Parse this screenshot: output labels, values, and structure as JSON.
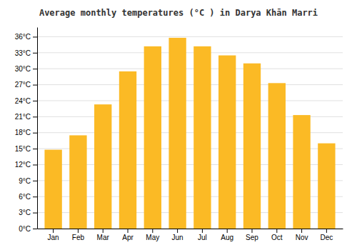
{
  "chart_data": {
    "type": "bar",
    "title": "Average monthly temperatures (°C ) in Darya Khān Marri",
    "categories": [
      "Jan",
      "Feb",
      "Mar",
      "Apr",
      "May",
      "Jun",
      "Jul",
      "Aug",
      "Sep",
      "Oct",
      "Nov",
      "Dec"
    ],
    "values": [
      14.8,
      17.5,
      23.3,
      29.5,
      34.2,
      35.8,
      34.2,
      32.5,
      31.0,
      27.3,
      21.3,
      16.0
    ],
    "color": "#FBBA25",
    "ylim": [
      0,
      37.8
    ],
    "yticks": [
      {
        "value": 0,
        "label": "0°C"
      },
      {
        "value": 3,
        "label": "3°C"
      },
      {
        "value": 6,
        "label": "6°C"
      },
      {
        "value": 9,
        "label": "9°C"
      },
      {
        "value": 12,
        "label": "12°C"
      },
      {
        "value": 15,
        "label": "15°C"
      },
      {
        "value": 18,
        "label": "18°C"
      },
      {
        "value": 21,
        "label": "21°C"
      },
      {
        "value": 24,
        "label": "24°C"
      },
      {
        "value": 27,
        "label": "27°C"
      },
      {
        "value": 30,
        "label": "30°C"
      },
      {
        "value": 33,
        "label": "33°C"
      },
      {
        "value": 36,
        "label": "36°C"
      }
    ],
    "grid": true
  }
}
